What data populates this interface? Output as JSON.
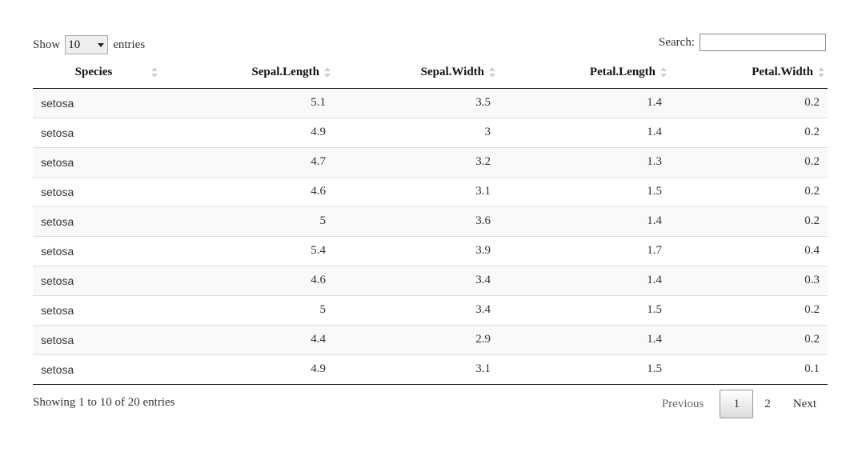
{
  "length_control": {
    "show_label": "Show",
    "selected": "10",
    "entries_label": "entries"
  },
  "search": {
    "label": "Search:",
    "value": "",
    "placeholder": ""
  },
  "table": {
    "columns": [
      "Species",
      "Sepal.Length",
      "Sepal.Width",
      "Petal.Length",
      "Petal.Width"
    ],
    "rows": [
      [
        "setosa",
        "5.1",
        "3.5",
        "1.4",
        "0.2"
      ],
      [
        "setosa",
        "4.9",
        "3",
        "1.4",
        "0.2"
      ],
      [
        "setosa",
        "4.7",
        "3.2",
        "1.3",
        "0.2"
      ],
      [
        "setosa",
        "4.6",
        "3.1",
        "1.5",
        "0.2"
      ],
      [
        "setosa",
        "5",
        "3.6",
        "1.4",
        "0.2"
      ],
      [
        "setosa",
        "5.4",
        "3.9",
        "1.7",
        "0.4"
      ],
      [
        "setosa",
        "4.6",
        "3.4",
        "1.4",
        "0.3"
      ],
      [
        "setosa",
        "5",
        "3.4",
        "1.5",
        "0.2"
      ],
      [
        "setosa",
        "4.4",
        "2.9",
        "1.4",
        "0.2"
      ],
      [
        "setosa",
        "4.9",
        "3.1",
        "1.5",
        "0.1"
      ]
    ]
  },
  "info": "Showing 1 to 10 of 20 entries",
  "pagination": {
    "previous": "Previous",
    "pages": [
      "1",
      "2"
    ],
    "current": "1",
    "next": "Next"
  },
  "icons": {
    "sort": "sort-both-icon",
    "select_caret": "chevron-down-icon"
  }
}
